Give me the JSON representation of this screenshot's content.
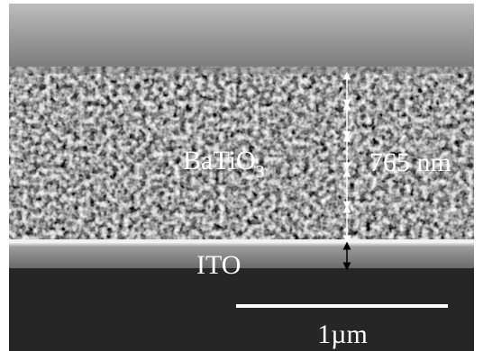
{
  "image": {
    "film_label": {
      "text": "BaTiO",
      "subscript": "3"
    },
    "thickness_label": "765 nm",
    "electrode_label": "ITO",
    "scale_bar_label": "1µm"
  }
}
